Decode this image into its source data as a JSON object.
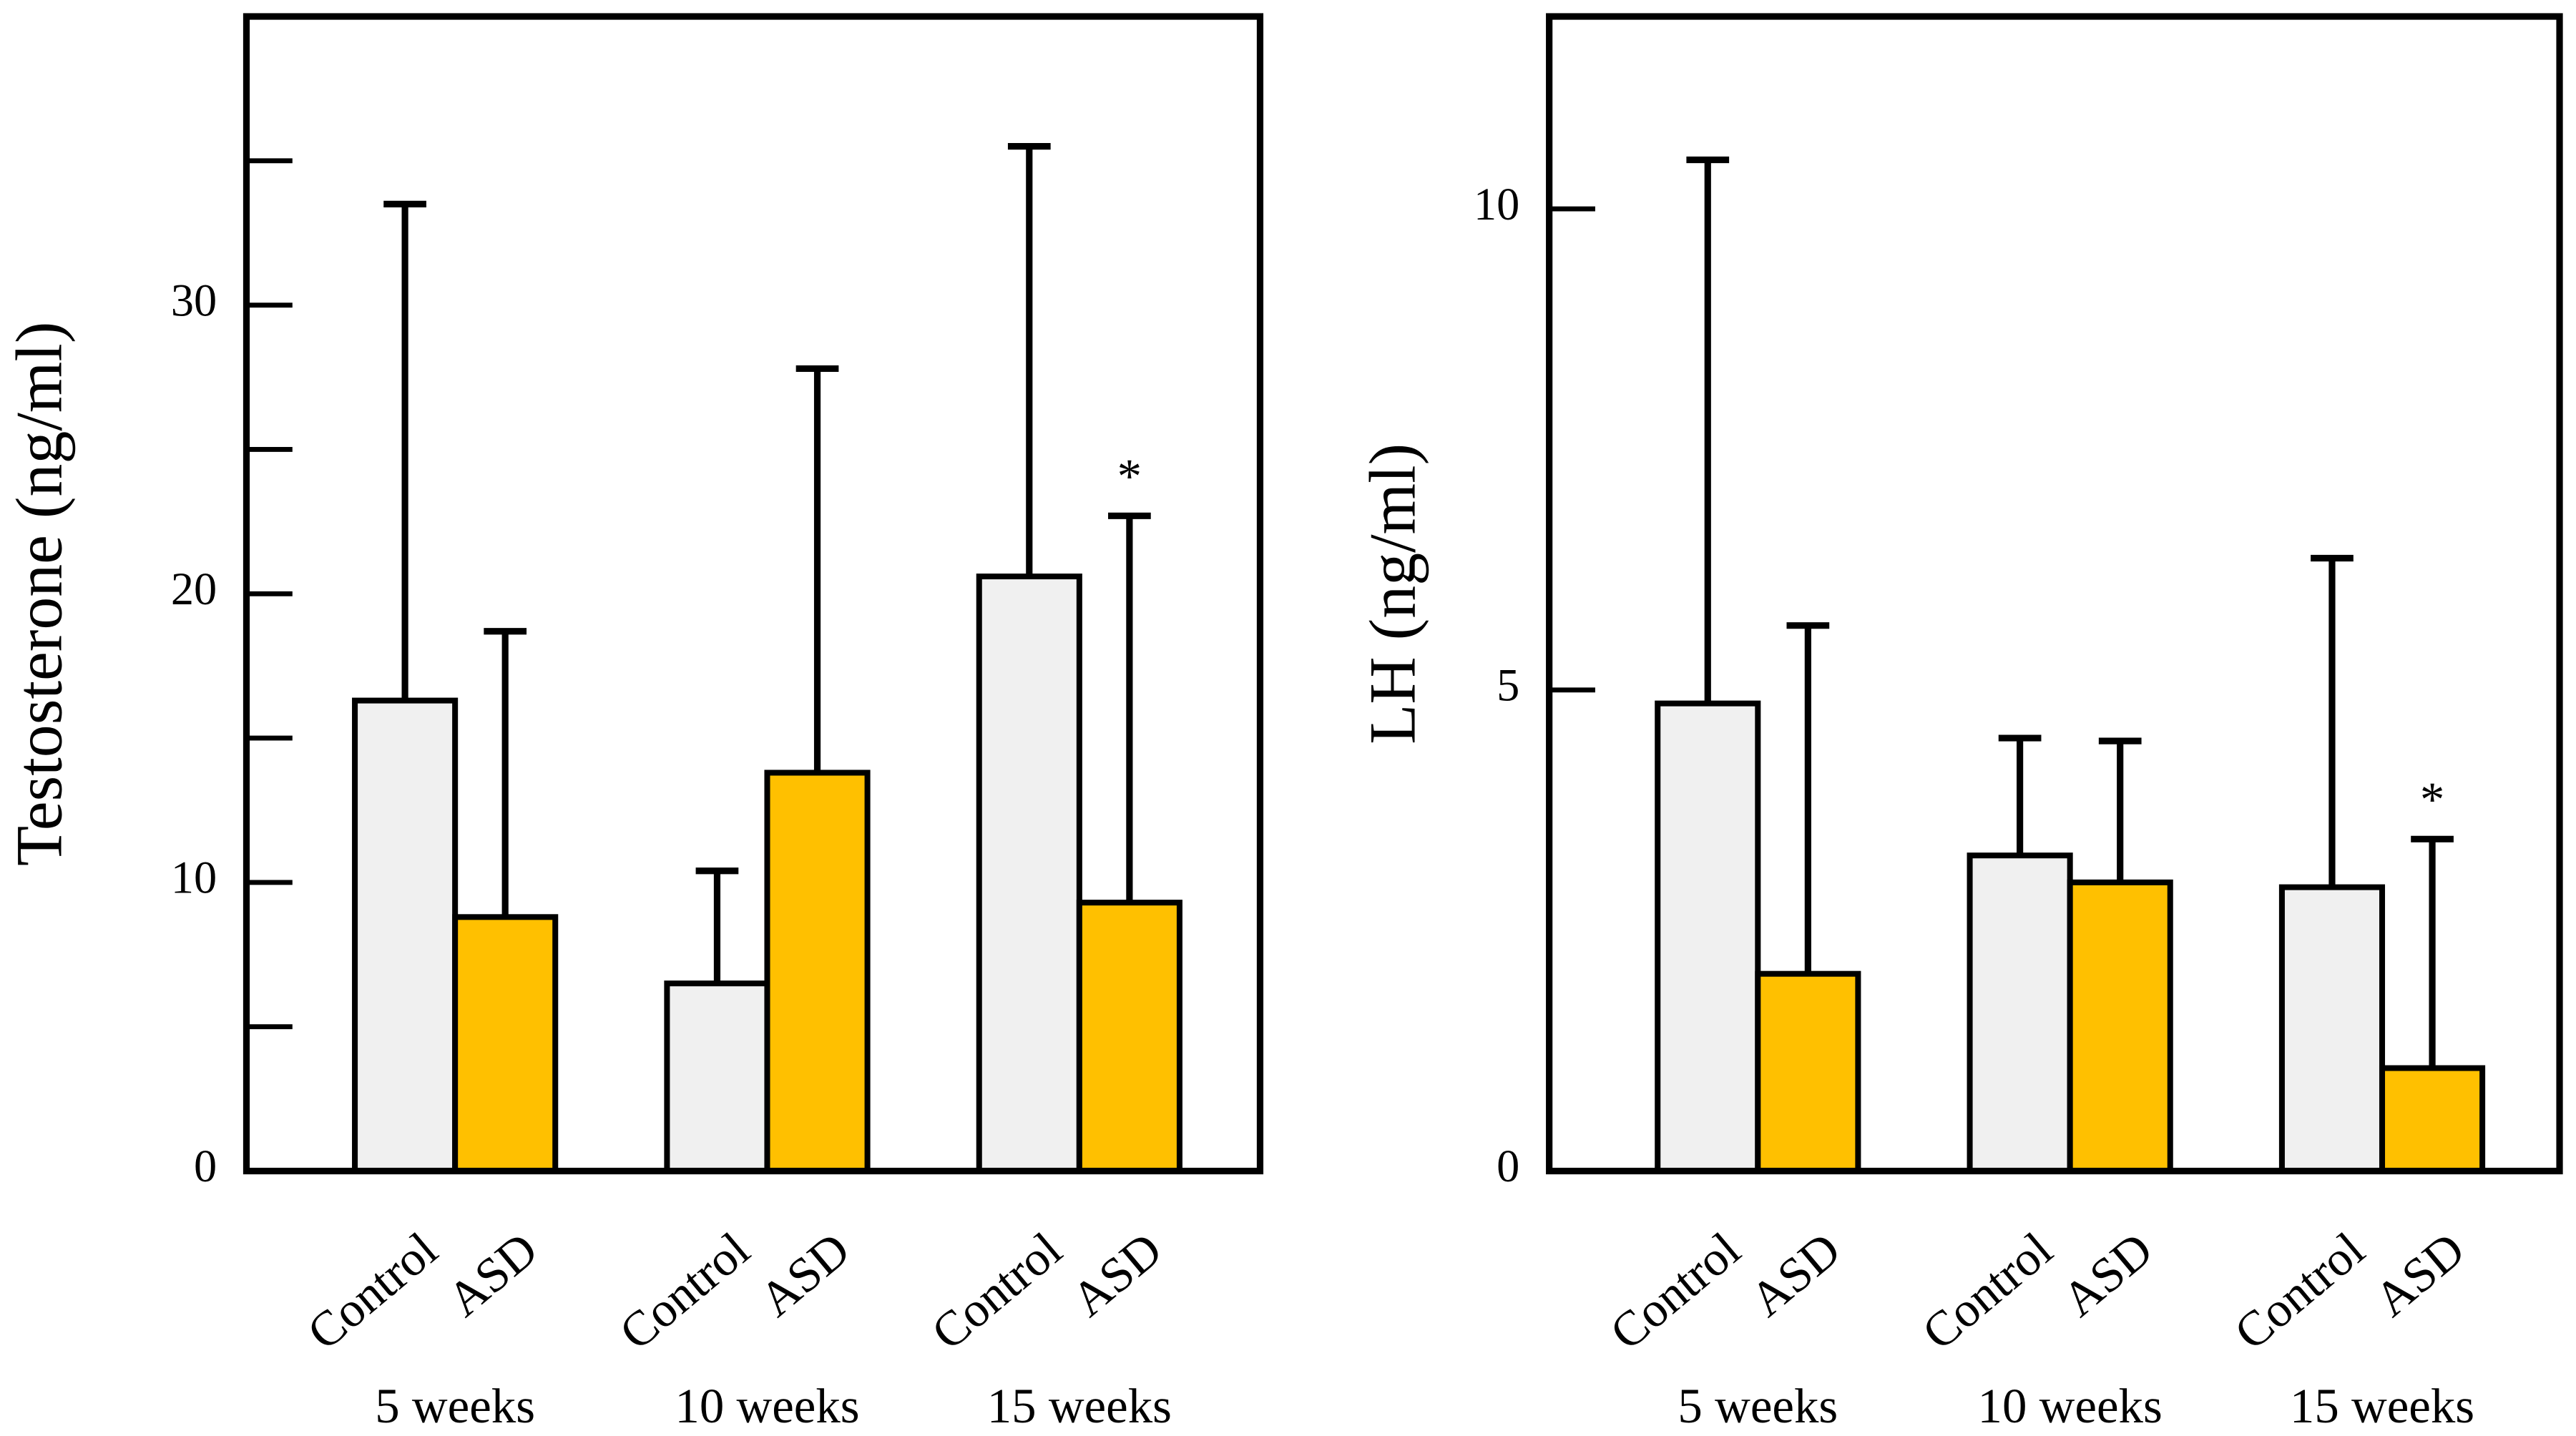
{
  "chart_data": [
    {
      "type": "bar",
      "ylabel": "Testosterone (ng/ml)",
      "categories": [
        "5 weeks",
        "10 weeks",
        "15 weeks"
      ],
      "series": [
        {
          "name": "Control",
          "color": "#f0f0f0",
          "values": [
            16.3,
            6.5,
            20.6
          ],
          "errors": [
            17.2,
            3.9,
            14.9
          ],
          "significance": [
            null,
            null,
            null
          ]
        },
        {
          "name": "ASD",
          "color": "#ffc000",
          "values": [
            8.8,
            13.8,
            9.3
          ],
          "errors": [
            9.9,
            14.0,
            13.4
          ],
          "significance": [
            null,
            null,
            "*"
          ]
        }
      ],
      "ylim": [
        0,
        40
      ],
      "yticks": [
        0,
        10,
        20,
        30
      ],
      "minor_yticks": [
        5,
        15,
        25,
        35
      ]
    },
    {
      "type": "bar",
      "ylabel": "LH (ng/ml)",
      "categories": [
        "5 weeks",
        "10 weeks",
        "15 weeks"
      ],
      "series": [
        {
          "name": "Control",
          "color": "#f0f0f0",
          "values": [
            4.86,
            3.28,
            2.95
          ],
          "errors": [
            5.65,
            1.22,
            3.42
          ],
          "significance": [
            null,
            null,
            null
          ]
        },
        {
          "name": "ASD",
          "color": "#ffc000",
          "values": [
            2.05,
            3.0,
            1.07
          ],
          "errors": [
            3.62,
            1.47,
            2.38
          ],
          "significance": [
            null,
            null,
            "*"
          ]
        }
      ],
      "ylim": [
        0,
        12
      ],
      "yticks": [
        0,
        5,
        10
      ],
      "minor_yticks": []
    }
  ]
}
